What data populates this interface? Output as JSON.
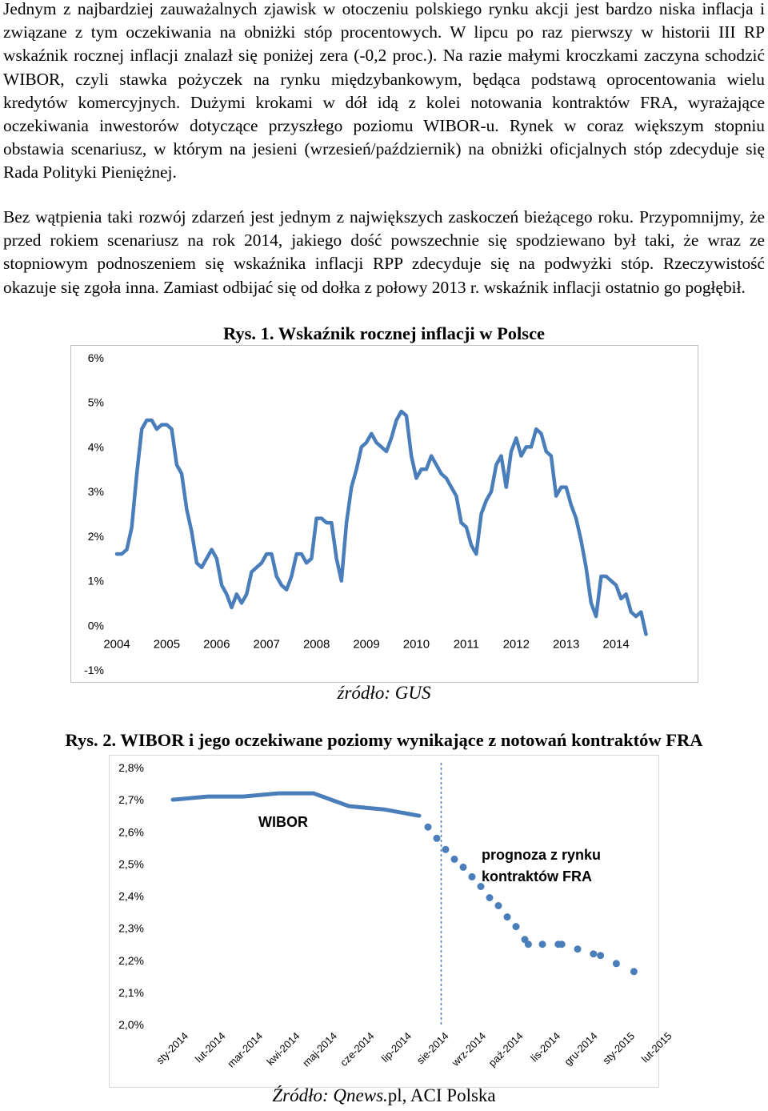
{
  "article": {
    "paragraph1": "Jednym z najbardziej zauważalnych zjawisk w otoczeniu polskiego rynku akcji jest bardzo niska inflacja i związane z tym oczekiwania na obniżki stóp procentowych. W lipcu po raz pierwszy w historii III RP wskaźnik rocznej inflacji znalazł się poniżej zera (-0,2 proc.). Na razie małymi kroczkami zaczyna schodzić WIBOR, czyli stawka pożyczek na rynku międzybankowym, będąca podstawą oprocentowania wielu kredytów komercyjnych. Dużymi krokami w dół idą z kolei notowania kontraktów FRA, wyrażające oczekiwania inwestorów dotyczące przyszłego poziomu WIBOR-u. Rynek w coraz większym stopniu obstawia scenariusz, w którym na jesieni (wrzesień/październik) na obniżki oficjalnych stóp zdecyduje się Rada Polityki Pieniężnej.",
    "paragraph2": "Bez wątpienia taki rozwój zdarzeń jest jednym z największych zaskoczeń bieżącego roku. Przypomnijmy, że przed rokiem scenariusz na rok 2014, jakiego dość powszechnie się spodziewano był taki, że wraz ze stopniowym podnoszeniem się wskaźnika inflacji RPP zdecyduje się na podwyżki stóp. Rzeczywistość okazuje się zgoła inna. Zamiast odbijać się od dołka z połowy 2013 r. wskaźnik inflacji ostatnio go pogłębił."
  },
  "figure1": {
    "caption": "Rys. 1. Wskaźnik rocznej inflacji w Polsce",
    "source": "źródło: GUS"
  },
  "figure2": {
    "caption": "Rys. 2. WIBOR i jego oczekiwane poziomy wynikające z notowań kontraktów FRA",
    "source_prefix": "Źródło: ",
    "source_italic": "Qnews.",
    "source_rest": "pl, ACI Polska"
  },
  "chart_data": [
    {
      "type": "line",
      "title": "Rys. 1. Wskaźnik rocznej inflacji w Polsce",
      "ylim": [
        -1,
        6
      ],
      "yticks": [
        "6%",
        "5%",
        "4%",
        "3%",
        "2%",
        "1%",
        "0%",
        "-1%"
      ],
      "ytick_values": [
        6,
        5,
        4,
        3,
        2,
        1,
        0,
        -1
      ],
      "xticks": [
        "2004",
        "2005",
        "2006",
        "2007",
        "2008",
        "2009",
        "2010",
        "2011",
        "2012",
        "2013",
        "2014"
      ],
      "xlim": [
        2004,
        2014.8
      ],
      "grid": false,
      "color": "#4a7ebb",
      "series": [
        {
          "x": [
            2004.0,
            2004.1,
            2004.2,
            2004.3,
            2004.4,
            2004.5,
            2004.6,
            2004.7,
            2004.8,
            2004.9,
            2005.0,
            2005.1,
            2005.2,
            2005.3,
            2005.4,
            2005.5,
            2005.6,
            2005.7,
            2005.8,
            2005.9,
            2006.0,
            2006.1,
            2006.2,
            2006.3,
            2006.4,
            2006.5,
            2006.6,
            2006.7,
            2006.8,
            2006.9,
            2007.0,
            2007.1,
            2007.2,
            2007.3,
            2007.4,
            2007.5,
            2007.6,
            2007.7,
            2007.8,
            2007.9,
            2008.0,
            2008.1,
            2008.2,
            2008.3,
            2008.4,
            2008.5,
            2008.6,
            2008.7,
            2008.8,
            2008.9,
            2009.0,
            2009.1,
            2009.2,
            2009.3,
            2009.4,
            2009.5,
            2009.6,
            2009.7,
            2009.8,
            2009.9,
            2010.0,
            2010.1,
            2010.2,
            2010.3,
            2010.4,
            2010.5,
            2010.6,
            2010.7,
            2010.8,
            2010.9,
            2011.0,
            2011.1,
            2011.2,
            2011.3,
            2011.4,
            2011.5,
            2011.6,
            2011.7,
            2011.8,
            2011.9,
            2012.0,
            2012.1,
            2012.2,
            2012.3,
            2012.4,
            2012.5,
            2012.6,
            2012.7,
            2012.8,
            2012.9,
            2013.0,
            2013.1,
            2013.2,
            2013.3,
            2013.4,
            2013.5,
            2013.6,
            2013.7,
            2013.8,
            2013.9,
            2014.0,
            2014.1,
            2014.2,
            2014.3,
            2014.4,
            2014.5,
            2014.6
          ],
          "y": [
            1.6,
            1.6,
            1.7,
            2.2,
            3.4,
            4.4,
            4.6,
            4.6,
            4.4,
            4.5,
            4.5,
            4.4,
            3.6,
            3.4,
            2.6,
            2.1,
            1.4,
            1.3,
            1.5,
            1.7,
            1.5,
            0.9,
            0.7,
            0.4,
            0.7,
            0.5,
            0.7,
            1.2,
            1.3,
            1.4,
            1.6,
            1.6,
            1.1,
            0.9,
            0.8,
            1.1,
            1.6,
            1.6,
            1.4,
            1.5,
            2.4,
            2.4,
            2.3,
            2.3,
            1.5,
            1.0,
            2.3,
            3.1,
            3.5,
            4.0,
            4.1,
            4.3,
            4.1,
            4.0,
            3.9,
            4.2,
            4.6,
            4.8,
            4.7,
            3.8,
            3.3,
            3.5,
            3.5,
            3.8,
            3.6,
            3.4,
            3.3,
            3.1,
            2.9,
            2.3,
            2.2,
            1.8,
            1.6,
            2.5,
            2.8,
            3.0,
            3.6,
            3.8,
            3.1,
            3.9,
            4.2,
            3.8,
            4.0,
            4.0,
            4.4,
            4.3,
            3.9,
            3.8,
            2.9,
            3.1,
            3.1,
            2.7,
            2.4,
            1.9,
            1.3,
            0.5,
            0.2,
            1.1,
            1.1,
            1.0,
            0.9,
            0.6,
            0.7,
            0.3,
            0.2,
            0.3,
            -0.2
          ]
        }
      ]
    },
    {
      "type": "line",
      "title": "Rys. 2. WIBOR i jego oczekiwane poziomy wynikające z notowań kontraktów FRA",
      "ylim": [
        2.0,
        2.8
      ],
      "yticks": [
        "2,8%",
        "2,7%",
        "2,6%",
        "2,5%",
        "2,4%",
        "2,3%",
        "2,2%",
        "2,1%",
        "2,0%"
      ],
      "ytick_values": [
        2.8,
        2.7,
        2.6,
        2.5,
        2.4,
        2.3,
        2.2,
        2.1,
        2.0
      ],
      "categories": [
        "sty-2014",
        "lut-2014",
        "mar-2014",
        "kwi-2014",
        "maj-2014",
        "cze-2014",
        "lip-2014",
        "sie-2014",
        "wrz-2014",
        "paź-2014",
        "lis-2014",
        "gru-2014",
        "sty-2015",
        "lut-2015"
      ],
      "grid": false,
      "color": "#4a7ebb",
      "annotations": [
        "WIBOR",
        "prognoza z rynku",
        "kontraktów FRA"
      ],
      "series": [
        {
          "name": "WIBOR",
          "style": "solid",
          "x": [
            0,
            0.5,
            1,
            1.5,
            2,
            2.5,
            3,
            3.5,
            4,
            4.5,
            5,
            5.5,
            6,
            6.5,
            7
          ],
          "y": [
            2.7,
            2.705,
            2.71,
            2.71,
            2.71,
            2.715,
            2.72,
            2.72,
            2.72,
            2.7,
            2.68,
            2.675,
            2.67,
            2.66,
            2.65
          ]
        },
        {
          "name": "prognoza z rynku kontraktów FRA",
          "style": "dotted",
          "x": [
            7.25,
            7.5,
            7.75,
            8.0,
            8.25,
            8.5,
            8.75,
            9.0,
            9.25,
            9.5,
            9.75,
            10.0,
            10.1,
            10.5,
            10.95,
            11.05,
            11.5,
            11.95,
            12.15,
            12.6,
            13.1
          ],
          "y": [
            2.615,
            2.58,
            2.545,
            2.515,
            2.49,
            2.46,
            2.43,
            2.395,
            2.37,
            2.335,
            2.305,
            2.265,
            2.25,
            2.25,
            2.25,
            2.25,
            2.235,
            2.22,
            2.215,
            2.19,
            2.165
          ]
        }
      ],
      "divider_at": "sie-2014"
    }
  ]
}
